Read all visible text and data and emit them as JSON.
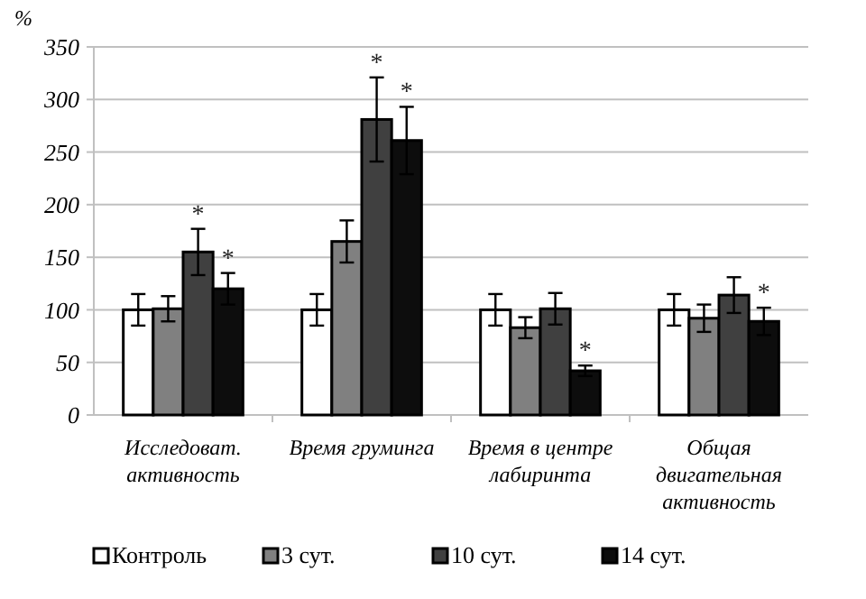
{
  "chart_data": {
    "type": "bar",
    "ylabel": "%",
    "categories": [
      "Исследоват. активность",
      "Время груминга",
      "Время в центре лабиринта",
      "Общая двигательная активность"
    ],
    "series": [
      {
        "name": "Контроль",
        "color": "#ffffff",
        "values": [
          100,
          100,
          100,
          100
        ],
        "errors": [
          15,
          15,
          15,
          15
        ]
      },
      {
        "name": "3 сут.",
        "color": "#808080",
        "values": [
          101,
          165,
          83,
          92
        ],
        "errors": [
          12,
          20,
          10,
          13
        ]
      },
      {
        "name": "10 сут.",
        "color": "#404040",
        "values": [
          155,
          281,
          101,
          114
        ],
        "errors": [
          22,
          40,
          15,
          17
        ]
      },
      {
        "name": "14 сут.",
        "color": "#0d0d0d",
        "values": [
          120,
          261,
          42,
          89
        ],
        "errors": [
          15,
          32,
          5,
          13
        ]
      }
    ],
    "ylim": [
      0,
      350
    ],
    "yticks": [
      0,
      50,
      100,
      150,
      200,
      250,
      300,
      350
    ],
    "grid": "y",
    "legend": "bottom",
    "annotations": [
      {
        "text": "*",
        "x": "Исследоват. активность",
        "y": 155
      },
      {
        "text": "*",
        "x": "Исследоват. активность",
        "y": 120
      },
      {
        "text": "*",
        "x": "Время груминга",
        "y": 281
      },
      {
        "text": "*",
        "x": "Время груминга",
        "y": 261
      },
      {
        "text": "*",
        "x": "Время в центре лабиринта",
        "y": 42
      },
      {
        "text": "*",
        "x": "Общая двигательная активность",
        "y": 89
      }
    ]
  }
}
